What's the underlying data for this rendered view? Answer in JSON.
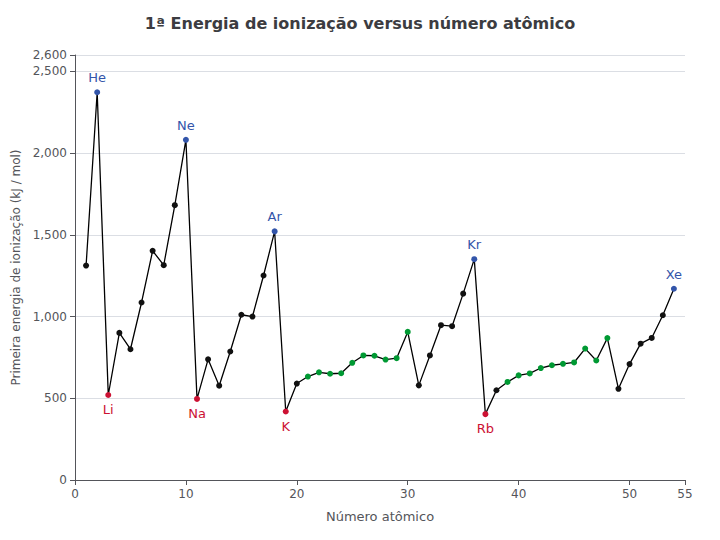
{
  "chart_data": {
    "type": "line",
    "title": "1ª Energia de ionização versus número atômico",
    "xlabel": "Número atômico",
    "ylabel": "Primeira energia de ionização (kJ / mol)",
    "x": [
      1,
      2,
      3,
      4,
      5,
      6,
      7,
      8,
      9,
      10,
      11,
      12,
      13,
      14,
      15,
      16,
      17,
      18,
      19,
      20,
      21,
      22,
      23,
      24,
      25,
      26,
      27,
      28,
      29,
      30,
      31,
      32,
      33,
      34,
      35,
      36,
      37,
      38,
      39,
      40,
      41,
      42,
      43,
      44,
      45,
      46,
      47,
      48,
      49,
      50,
      51,
      52,
      53,
      54
    ],
    "values": [
      1312,
      2372,
      520,
      900,
      800,
      1086,
      1402,
      1314,
      1681,
      2081,
      496,
      738,
      577,
      786,
      1011,
      1000,
      1251,
      1521,
      419,
      590,
      633,
      659,
      650,
      653,
      717,
      762,
      760,
      737,
      745,
      906,
      579,
      762,
      947,
      941,
      1140,
      1351,
      403,
      549,
      600,
      640,
      652,
      685,
      702,
      711,
      719,
      804,
      731,
      868,
      558,
      709,
      834,
      869,
      1008,
      1170
    ],
    "color": "#000000",
    "marker": "circle",
    "colors": [
      "#111111",
      "#3355aa",
      "#cc1133",
      "#111111",
      "#111111",
      "#111111",
      "#111111",
      "#111111",
      "#111111",
      "#3355aa",
      "#cc1133",
      "#111111",
      "#111111",
      "#111111",
      "#111111",
      "#111111",
      "#111111",
      "#3355aa",
      "#cc1133",
      "#111111",
      "#009933",
      "#009933",
      "#009933",
      "#009933",
      "#009933",
      "#009933",
      "#009933",
      "#009933",
      "#009933",
      "#009933",
      "#111111",
      "#111111",
      "#111111",
      "#111111",
      "#111111",
      "#3355aa",
      "#cc1133",
      "#111111",
      "#009933",
      "#009933",
      "#009933",
      "#009933",
      "#009933",
      "#009933",
      "#009933",
      "#009933",
      "#009933",
      "#009933",
      "#111111",
      "#111111",
      "#111111",
      "#111111",
      "#111111",
      "#3355aa"
    ],
    "xlim": [
      0,
      55
    ],
    "ylim": [
      0,
      2600
    ],
    "xticks": [
      0,
      10,
      20,
      30,
      40,
      50
    ],
    "yticks": [
      0,
      500,
      1000,
      1500,
      2000,
      2500
    ],
    "grid": true,
    "annotations": [
      {
        "text": "He",
        "x": 2,
        "y": 2372,
        "color": "#3355aa"
      },
      {
        "text": "Ne",
        "x": 10,
        "y": 2081,
        "color": "#3355aa"
      },
      {
        "text": "Ar",
        "x": 18,
        "y": 1521,
        "color": "#3355aa"
      },
      {
        "text": "Kr",
        "x": 36,
        "y": 1351,
        "color": "#3355aa"
      },
      {
        "text": "Xe",
        "x": 54,
        "y": 1170,
        "color": "#3355aa"
      },
      {
        "text": "Li",
        "x": 3,
        "y": 520,
        "color": "#cc1133"
      },
      {
        "text": "Na",
        "x": 11,
        "y": 496,
        "color": "#cc1133"
      },
      {
        "text": "K",
        "x": 19,
        "y": 419,
        "color": "#cc1133"
      },
      {
        "text": "Rb",
        "x": 37,
        "y": 403,
        "color": "#cc1133"
      }
    ]
  }
}
